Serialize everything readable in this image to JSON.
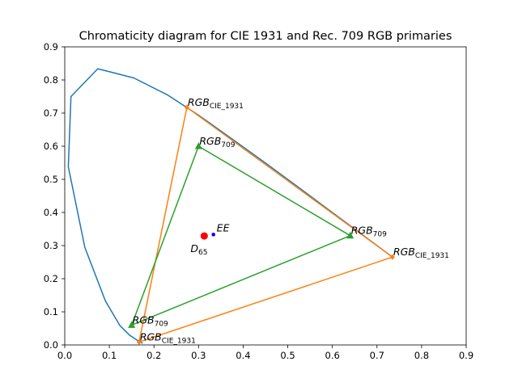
{
  "chart_data": {
    "type": "line",
    "title": "Chromaticity diagram for CIE 1931 and Rec. 709 RGB primaries",
    "xlabel": "",
    "ylabel": "",
    "xlim": [
      0.0,
      0.9
    ],
    "ylim": [
      0.0,
      0.9
    ],
    "grid": false,
    "xticks": [
      "0.0",
      "0.1",
      "0.2",
      "0.3",
      "0.4",
      "0.5",
      "0.6",
      "0.7",
      "0.8",
      "0.9"
    ],
    "yticks": [
      "0.0",
      "0.1",
      "0.2",
      "0.3",
      "0.4",
      "0.5",
      "0.6",
      "0.7",
      "0.8",
      "0.9"
    ],
    "colors": {
      "locus": "#1f77b4",
      "cie1931": "#ff7f0e",
      "rec709": "#2ca02c",
      "d65": "#ff0000",
      "ee": "#0000ff"
    },
    "locus": {
      "x": [
        0.175,
        0.165,
        0.145,
        0.124,
        0.091,
        0.045,
        0.008,
        0.014,
        0.074,
        0.155,
        0.23,
        0.302,
        0.373,
        0.444,
        0.513,
        0.58,
        0.641,
        0.692,
        0.735
      ],
      "y": [
        0.005,
        0.012,
        0.03,
        0.058,
        0.133,
        0.295,
        0.538,
        0.75,
        0.834,
        0.806,
        0.755,
        0.692,
        0.624,
        0.555,
        0.487,
        0.42,
        0.359,
        0.308,
        0.265
      ]
    },
    "series": [
      {
        "name": "RGB_CIE_1931",
        "marker": "diamond",
        "points": [
          {
            "x": 0.7347,
            "y": 0.2653,
            "label": "RGB",
            "sub": "CIE_1931"
          },
          {
            "x": 0.2738,
            "y": 0.7174,
            "label": "RGB",
            "sub": "CIE_1931"
          },
          {
            "x": 0.1666,
            "y": 0.0089,
            "label": "RGB",
            "sub": "CIE_1931"
          }
        ]
      },
      {
        "name": "RGB_709",
        "marker": "triangle",
        "points": [
          {
            "x": 0.64,
            "y": 0.33,
            "label": "RGB",
            "sub": "709"
          },
          {
            "x": 0.3,
            "y": 0.6,
            "label": "RGB",
            "sub": "709"
          },
          {
            "x": 0.15,
            "y": 0.06,
            "label": "RGB",
            "sub": "709"
          }
        ]
      }
    ],
    "points": [
      {
        "name": "D65",
        "x": 0.3127,
        "y": 0.329,
        "label": "D",
        "sub": "65"
      },
      {
        "name": "EE",
        "x": 0.3333,
        "y": 0.3333,
        "label": "EE",
        "sub": ""
      }
    ]
  }
}
